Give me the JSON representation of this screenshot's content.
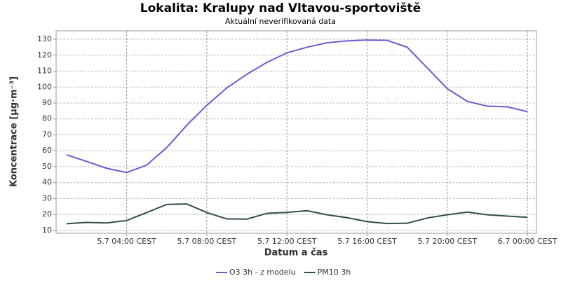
{
  "chart_data": {
    "type": "line",
    "title": "Lokalita: Kralupy nad Vltavou-sportoviště",
    "subtitle": "Aktuální neverifikovaná data",
    "x_label": "Datum a čas",
    "y_label": "Koncentrace [µg·m⁻³]",
    "x": [
      1,
      2,
      3,
      4,
      5,
      6,
      7,
      8,
      9,
      10,
      11,
      12,
      13,
      14,
      15,
      16,
      17,
      18,
      19,
      20,
      21,
      22,
      23,
      24
    ],
    "series": [
      {
        "name": "O3 3h - z modelu",
        "color": "#6b5bd2",
        "values": [
          57.5,
          53.3,
          49,
          46.3,
          51,
          62,
          76,
          88.5,
          99.5,
          108,
          115.5,
          121.5,
          125,
          127.8,
          129,
          129.5,
          129.3,
          125,
          112,
          99,
          91,
          88,
          87.6,
          84.5
        ]
      },
      {
        "name": "PM10 3h",
        "color": "#2f4f4f",
        "values": [
          14.2,
          15,
          14.7,
          16.2,
          21.2,
          26.3,
          26.6,
          21.2,
          17.2,
          17.1,
          20.7,
          21.3,
          22.4,
          19.8,
          18,
          15.5,
          14.3,
          14.5,
          17.8,
          19.8,
          21.5,
          19.8,
          19,
          18.2
        ]
      }
    ],
    "xlim": [
      0.48,
      24.45
    ],
    "xticks": [
      {
        "value": 4,
        "label": "5.7 04:00 CEST"
      },
      {
        "value": 8,
        "label": "5.7 08:00 CEST"
      },
      {
        "value": 12,
        "label": "5.7 12:00 CEST"
      },
      {
        "value": 16,
        "label": "5.7 16:00 CEST"
      },
      {
        "value": 20,
        "label": "5.7 20:00 CEST"
      },
      {
        "value": 24,
        "label": "6.7 00:00 CEST"
      }
    ],
    "ylim": [
      8.2,
      135.3
    ],
    "yticks": [
      10,
      20,
      30,
      40,
      50,
      60,
      70,
      80,
      90,
      100,
      110,
      120,
      130
    ],
    "grid": true,
    "legend": "bottom"
  }
}
